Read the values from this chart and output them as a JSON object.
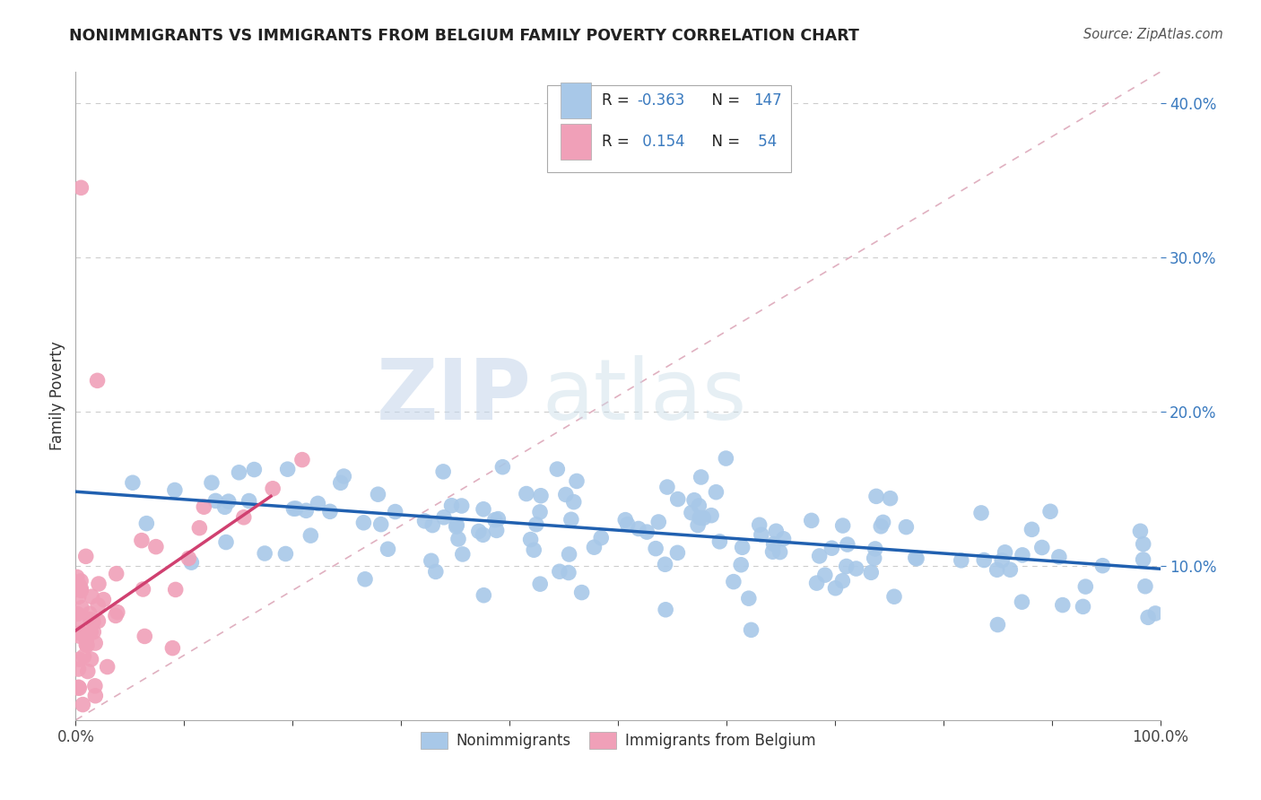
{
  "title": "NONIMMIGRANTS VS IMMIGRANTS FROM BELGIUM FAMILY POVERTY CORRELATION CHART",
  "source": "Source: ZipAtlas.com",
  "ylabel": "Family Poverty",
  "nonimmigrant_color": "#a8c8e8",
  "immigrant_color": "#f0a0b8",
  "nonimmigrant_line_color": "#2060b0",
  "immigrant_line_color": "#d04070",
  "diagonal_color": "#e0b0c0",
  "grid_color": "#cccccc",
  "watermark_zip": "ZIP",
  "watermark_atlas": "atlas",
  "background_color": "#ffffff",
  "xlim": [
    0.0,
    1.0
  ],
  "ylim": [
    0.0,
    0.42
  ],
  "ytick_positions": [
    0.1,
    0.2,
    0.3,
    0.4
  ],
  "ytick_labels": [
    "10.0%",
    "20.0%",
    "30.0%",
    "40.0%"
  ],
  "nonimmigrant_r": -0.363,
  "nonimmigrant_n": 147,
  "immigrant_r": 0.154,
  "immigrant_n": 54,
  "non_line_x0": 0.0,
  "non_line_y0": 0.148,
  "non_line_x1": 1.0,
  "non_line_y1": 0.098,
  "imm_line_x0": 0.0,
  "imm_line_y0": 0.058,
  "imm_line_x1": 0.18,
  "imm_line_y1": 0.145
}
